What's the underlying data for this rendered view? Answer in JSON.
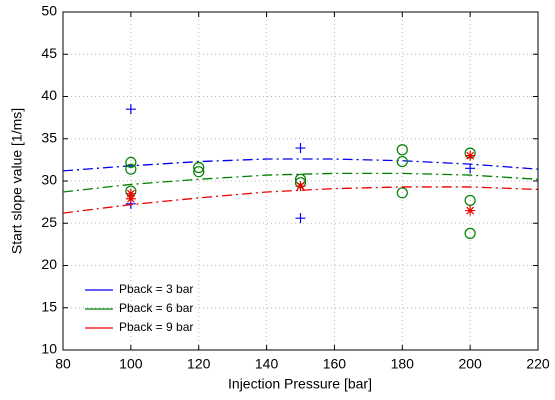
{
  "chart_data": {
    "type": "scatter",
    "xlabel": "Injection Pressure  [bar]",
    "ylabel": "Start slope value [1/ms]",
    "xlim": [
      80,
      220
    ],
    "xticks": [
      80,
      100,
      120,
      140,
      160,
      180,
      200,
      220
    ],
    "ylim": [
      10,
      50
    ],
    "yticks": [
      10,
      15,
      20,
      25,
      30,
      35,
      40,
      45,
      50
    ],
    "grid": true,
    "legend": "lower left",
    "series": [
      {
        "name": "Pback = 3 bar",
        "color": "#0000ee",
        "marker": "plus",
        "points_x": [
          100,
          100,
          150,
          150,
          200
        ],
        "points_y": [
          38.5,
          27.3,
          33.9,
          25.6,
          31.5
        ],
        "fit_x": [
          80,
          100,
          120,
          140,
          160,
          180,
          200,
          220
        ],
        "fit_y": [
          31.2,
          31.8,
          32.3,
          32.6,
          32.6,
          32.4,
          32.0,
          31.4
        ]
      },
      {
        "name": "Pback = 6 bar",
        "color": "#008000",
        "marker": "circle",
        "points_x": [
          100,
          100,
          100,
          120,
          120,
          150,
          150,
          180,
          180,
          180,
          200,
          200,
          200
        ],
        "points_y": [
          32.2,
          31.4,
          28.8,
          31.6,
          31.1,
          30.2,
          29.8,
          33.7,
          32.3,
          28.6,
          33.3,
          27.7,
          23.8
        ],
        "fit_x": [
          80,
          100,
          120,
          140,
          160,
          180,
          200,
          220
        ],
        "fit_y": [
          28.7,
          29.6,
          30.2,
          30.7,
          30.9,
          30.9,
          30.7,
          30.2
        ]
      },
      {
        "name": "Pback = 9 bar",
        "color": "#ee0000",
        "marker": "asterisk",
        "points_x": [
          100,
          100,
          150,
          200,
          200
        ],
        "points_y": [
          28.5,
          27.9,
          29.4,
          33.0,
          26.5
        ],
        "fit_x": [
          80,
          100,
          120,
          140,
          160,
          180,
          200,
          220
        ],
        "fit_y": [
          26.2,
          27.2,
          28.0,
          28.7,
          29.1,
          29.3,
          29.3,
          29.0
        ]
      }
    ]
  }
}
